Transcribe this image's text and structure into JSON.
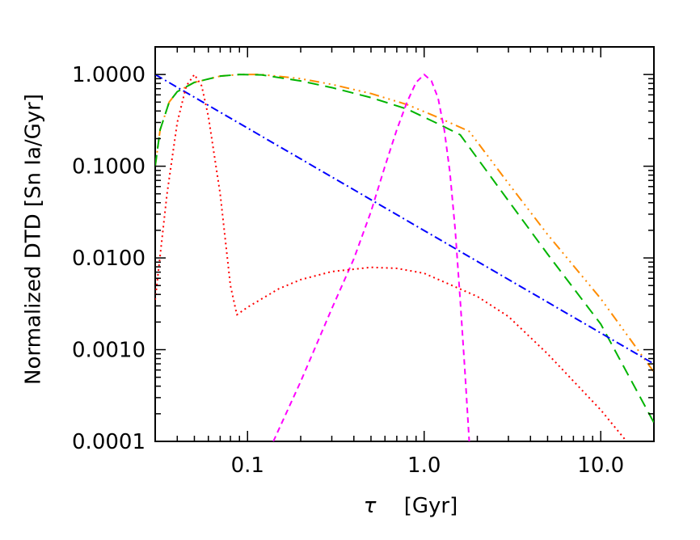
{
  "chart_data": {
    "type": "line",
    "xlabel_symbol": "τ",
    "xlabel_unit": "[Gyr]",
    "ylabel": "Normalized DTD [Sn Ia/Gyr]",
    "x_scale": "log",
    "y_scale": "log",
    "xlim": [
      0.03,
      20
    ],
    "ylim": [
      0.0001,
      2.0
    ],
    "x_ticks": [
      {
        "value": 0.1,
        "label": "0.1"
      },
      {
        "value": 1.0,
        "label": "1.0"
      },
      {
        "value": 10.0,
        "label": "10.0"
      }
    ],
    "y_ticks": [
      {
        "value": 1.0,
        "label": "1.0000"
      },
      {
        "value": 0.1,
        "label": "0.1000"
      },
      {
        "value": 0.01,
        "label": "0.0100"
      },
      {
        "value": 0.001,
        "label": "0.0010"
      },
      {
        "value": 0.0001,
        "label": "0.0001"
      }
    ],
    "grid": false,
    "series": [
      {
        "color": "#ff8c00",
        "dash": "12 5 2 5 2 5 2 5",
        "points": [
          [
            0.03,
            0.1
          ],
          [
            0.032,
            0.25
          ],
          [
            0.036,
            0.5
          ],
          [
            0.04,
            0.65
          ],
          [
            0.05,
            0.82
          ],
          [
            0.07,
            0.96
          ],
          [
            0.09,
            1.0
          ],
          [
            0.12,
            1.0
          ],
          [
            0.2,
            0.9
          ],
          [
            0.3,
            0.78
          ],
          [
            0.5,
            0.62
          ],
          [
            0.8,
            0.47
          ],
          [
            1.2,
            0.34
          ],
          [
            1.8,
            0.24
          ],
          [
            3,
            0.065
          ],
          [
            5,
            0.018
          ],
          [
            10,
            0.0036
          ],
          [
            20,
            0.00057
          ]
        ]
      },
      {
        "color": "#00b400",
        "dash": "14 8",
        "points": [
          [
            0.03,
            0.1
          ],
          [
            0.032,
            0.25
          ],
          [
            0.036,
            0.5
          ],
          [
            0.04,
            0.65
          ],
          [
            0.05,
            0.82
          ],
          [
            0.07,
            0.96
          ],
          [
            0.09,
            1.0
          ],
          [
            0.12,
            0.99
          ],
          [
            0.2,
            0.85
          ],
          [
            0.3,
            0.72
          ],
          [
            0.5,
            0.56
          ],
          [
            0.8,
            0.42
          ],
          [
            1.2,
            0.29
          ],
          [
            1.6,
            0.22
          ],
          [
            3,
            0.042
          ],
          [
            5,
            0.011
          ],
          [
            10,
            0.0019
          ],
          [
            20,
            0.00016
          ]
        ]
      },
      {
        "color": "#0000ff",
        "dash": "10 4 2 4",
        "points": [
          [
            0.03,
            1.0
          ],
          [
            20,
            0.0007
          ]
        ]
      },
      {
        "color": "#ff00ff",
        "dash": "7 5",
        "points": [
          [
            0.14,
            0.0001
          ],
          [
            0.2,
            0.00045
          ],
          [
            0.3,
            0.0028
          ],
          [
            0.4,
            0.0098
          ],
          [
            0.5,
            0.032
          ],
          [
            0.6,
            0.1
          ],
          [
            0.7,
            0.25
          ],
          [
            0.8,
            0.5
          ],
          [
            0.9,
            0.82
          ],
          [
            1.0,
            1.0
          ],
          [
            1.1,
            0.85
          ],
          [
            1.2,
            0.55
          ],
          [
            1.3,
            0.25
          ],
          [
            1.4,
            0.085
          ],
          [
            1.5,
            0.02
          ],
          [
            1.6,
            0.0035
          ],
          [
            1.7,
            0.0006
          ],
          [
            1.8,
            0.0001
          ]
        ]
      },
      {
        "color": "#ff0000",
        "dash": "2 4",
        "points": [
          [
            0.03,
            0.0035
          ],
          [
            0.035,
            0.05
          ],
          [
            0.04,
            0.3
          ],
          [
            0.045,
            0.75
          ],
          [
            0.05,
            1.0
          ],
          [
            0.055,
            0.75
          ],
          [
            0.06,
            0.35
          ],
          [
            0.07,
            0.05
          ],
          [
            0.08,
            0.005
          ],
          [
            0.087,
            0.0024
          ],
          [
            0.1,
            0.0029
          ],
          [
            0.15,
            0.0046
          ],
          [
            0.2,
            0.0058
          ],
          [
            0.3,
            0.0071
          ],
          [
            0.5,
            0.0079
          ],
          [
            0.7,
            0.0077
          ],
          [
            1.0,
            0.0068
          ],
          [
            2.0,
            0.0038
          ],
          [
            3,
            0.0023
          ],
          [
            5,
            0.0009
          ],
          [
            10,
            0.00022
          ],
          [
            14,
            0.0001
          ]
        ]
      }
    ]
  }
}
